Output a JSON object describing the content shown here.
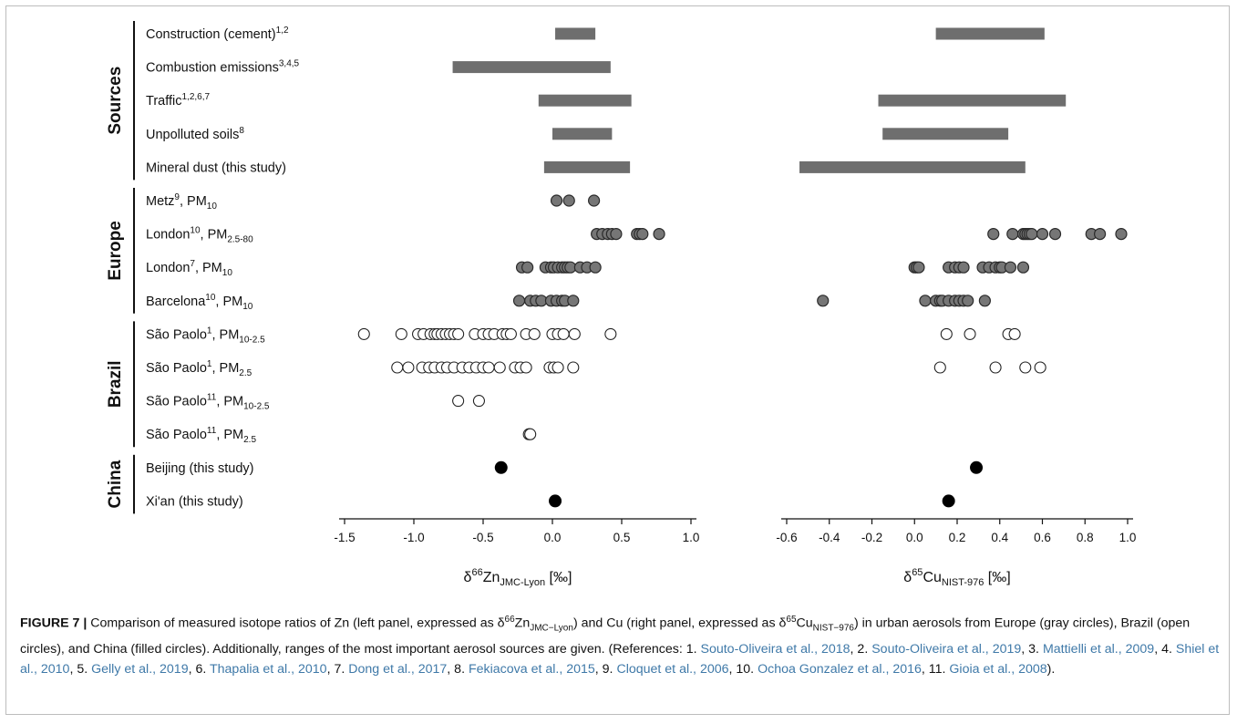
{
  "chart_data": {
    "type": "scatter",
    "groups": [
      "Sources",
      "Europe",
      "Brazil",
      "China"
    ],
    "rows": [
      {
        "group": "Sources",
        "label": "Construction (cement)",
        "sup": "1,2",
        "kind": "range",
        "zn": [
          0.02,
          0.31
        ],
        "cu": [
          0.1,
          0.61
        ]
      },
      {
        "group": "Sources",
        "label": "Combustion emissions",
        "sup": "3,4,5",
        "kind": "range",
        "zn": [
          -0.72,
          0.42
        ],
        "cu": null
      },
      {
        "group": "Sources",
        "label": "Traffic",
        "sup": "1,2,6,7",
        "kind": "range",
        "zn": [
          -0.1,
          0.57
        ],
        "cu": [
          -0.17,
          0.71
        ]
      },
      {
        "group": "Sources",
        "label": "Unpolluted soils",
        "sup": "8",
        "kind": "range",
        "zn": [
          0.0,
          0.43
        ],
        "cu": [
          -0.15,
          0.44
        ]
      },
      {
        "group": "Sources",
        "label": "Mineral dust (this study)",
        "sup": "",
        "kind": "range",
        "zn": [
          -0.06,
          0.56
        ],
        "cu": [
          -0.54,
          0.52
        ]
      },
      {
        "group": "Europe",
        "label": "Metz",
        "sup": "9",
        "pm": "PM",
        "pmsub": "10",
        "kind": "gray",
        "zn": [
          0.03,
          0.12,
          0.3
        ],
        "cu": []
      },
      {
        "group": "Europe",
        "label": "London",
        "sup": "10",
        "pm": "PM",
        "pmsub": "2.5-80",
        "kind": "gray",
        "zn": [
          0.32,
          0.36,
          0.4,
          0.43,
          0.46,
          0.61,
          0.63,
          0.65,
          0.77
        ],
        "cu": [
          0.37,
          0.46,
          0.51,
          0.52,
          0.53,
          0.54,
          0.55,
          0.6,
          0.66,
          0.83,
          0.87,
          0.97
        ]
      },
      {
        "group": "Europe",
        "label": "London",
        "sup": "7",
        "pm": "PM",
        "pmsub": "10",
        "kind": "gray",
        "zn": [
          -0.22,
          -0.18,
          -0.05,
          -0.01,
          0.01,
          0.04,
          0.07,
          0.09,
          0.11,
          0.13,
          0.2,
          0.25,
          0.31
        ],
        "cu": [
          0.0,
          0.01,
          0.02,
          0.16,
          0.19,
          0.21,
          0.23,
          0.32,
          0.35,
          0.38,
          0.4,
          0.41,
          0.45,
          0.51
        ]
      },
      {
        "group": "Europe",
        "label": "Barcelona",
        "sup": "10",
        "pm": "PM",
        "pmsub": "10",
        "kind": "gray",
        "zn": [
          -0.24,
          -0.16,
          -0.12,
          -0.08,
          -0.01,
          0.03,
          0.07,
          0.09,
          0.15
        ],
        "cu": [
          -0.43,
          0.05,
          0.1,
          0.12,
          0.13,
          0.16,
          0.19,
          0.21,
          0.23,
          0.25,
          0.33
        ]
      },
      {
        "group": "Brazil",
        "label": "São Paolo",
        "sup": "1",
        "pm": "PM",
        "pmsub": "10-2.5",
        "kind": "open",
        "zn": [
          -1.36,
          -1.09,
          -0.97,
          -0.93,
          -0.88,
          -0.85,
          -0.83,
          -0.8,
          -0.77,
          -0.74,
          -0.71,
          -0.68,
          -0.56,
          -0.5,
          -0.46,
          -0.42,
          -0.36,
          -0.33,
          -0.3,
          -0.19,
          -0.13,
          0.0,
          0.04,
          0.08,
          0.16,
          0.42
        ],
        "cu": [
          0.15,
          0.26,
          0.44,
          0.47
        ]
      },
      {
        "group": "Brazil",
        "label": "São Paolo",
        "sup": "1",
        "pm": "PM",
        "pmsub": "2.5",
        "kind": "open",
        "zn": [
          -1.12,
          -1.04,
          -0.94,
          -0.89,
          -0.85,
          -0.8,
          -0.76,
          -0.71,
          -0.65,
          -0.6,
          -0.55,
          -0.5,
          -0.46,
          -0.38,
          -0.27,
          -0.23,
          -0.19,
          -0.02,
          0.01,
          0.04,
          0.15
        ],
        "cu": [
          0.12,
          0.38,
          0.52,
          0.59
        ]
      },
      {
        "group": "Brazil",
        "label": "São Paolo",
        "sup": "11",
        "pm": "PM",
        "pmsub": "10-2.5",
        "kind": "open",
        "zn": [
          -0.68,
          -0.53
        ],
        "cu": []
      },
      {
        "group": "Brazil",
        "label": "São Paolo",
        "sup": "11",
        "pm": "PM",
        "pmsub": "2.5",
        "kind": "open",
        "zn": [
          -0.17,
          -0.16
        ],
        "cu": []
      },
      {
        "group": "China",
        "label": "Beijing (this study)",
        "sup": "",
        "kind": "filled",
        "zn": [
          -0.37
        ],
        "cu": [
          0.29
        ]
      },
      {
        "group": "China",
        "label": "Xi'an (this study)",
        "sup": "",
        "kind": "filled",
        "zn": [
          0.02
        ],
        "cu": [
          0.16
        ]
      }
    ],
    "zn_axis": {
      "min": -1.5,
      "max": 1.0,
      "ticks": [
        "-1.5",
        "-1.0",
        "-0.5",
        "0.0",
        "0.5",
        "1.0"
      ],
      "title_main": "δ",
      "title_mass": "66",
      "title_el": "Zn",
      "title_sub": "JMC-Lyon",
      "title_unit": " [‰]"
    },
    "cu_axis": {
      "min": -0.6,
      "max": 1.0,
      "ticks": [
        "-0.6",
        "-0.4",
        "-0.2",
        "0.0",
        "0.2",
        "0.4",
        "0.6",
        "0.8",
        "1.0"
      ],
      "title_main": "δ",
      "title_mass": "65",
      "title_el": "Cu",
      "title_sub": "NIST-976",
      "title_unit": " [‰]"
    },
    "colors": {
      "bar": "#6e6e6e",
      "gray_fill": "#767676",
      "open_fill": "#ffffff",
      "filled_fill": "#000000"
    }
  },
  "caption": {
    "fig_label": "FIGURE 7 |",
    "text_1": " Comparison of measured isotope ratios of Zn (left panel, expressed as δ",
    "text_1_sup": "66",
    "text_1b": "Zn",
    "text_1_sub": "JMC−Lyon",
    "text_2": ") and Cu (right panel, expressed as δ",
    "text_2_sup": "65",
    "text_2b": "Cu",
    "text_2_sub": "NIST−976",
    "text_3": ") in urban aerosols from Europe (gray circles), Brazil (open circles), and China (filled circles). Additionally, ranges of the most important aerosol sources are given. (References: 1. ",
    "refs": [
      {
        "ref": "Souto-Oliveira et al., 2018",
        "after": ", 2. "
      },
      {
        "ref": "Souto-Oliveira et al., 2019",
        "after": ", 3. "
      },
      {
        "ref": "Mattielli et al., 2009",
        "after": ", 4. "
      },
      {
        "ref": "Shiel et al., 2010",
        "after": ", 5. "
      },
      {
        "ref": "Gelly et al., 2019",
        "after": ", 6. "
      },
      {
        "ref": "Thapalia et al., 2010",
        "after": ", 7. "
      },
      {
        "ref": "Dong et al., 2017",
        "after": ", 8. "
      },
      {
        "ref": "Fekiacova et al., 2015",
        "after": ", 9. "
      },
      {
        "ref": "Cloquet et al., 2006",
        "after": ", 10. "
      },
      {
        "ref": "Ochoa Gonzalez et al., 2016",
        "after": ", 11. "
      },
      {
        "ref": "Gioia et al., 2008",
        "after": ")."
      }
    ]
  }
}
